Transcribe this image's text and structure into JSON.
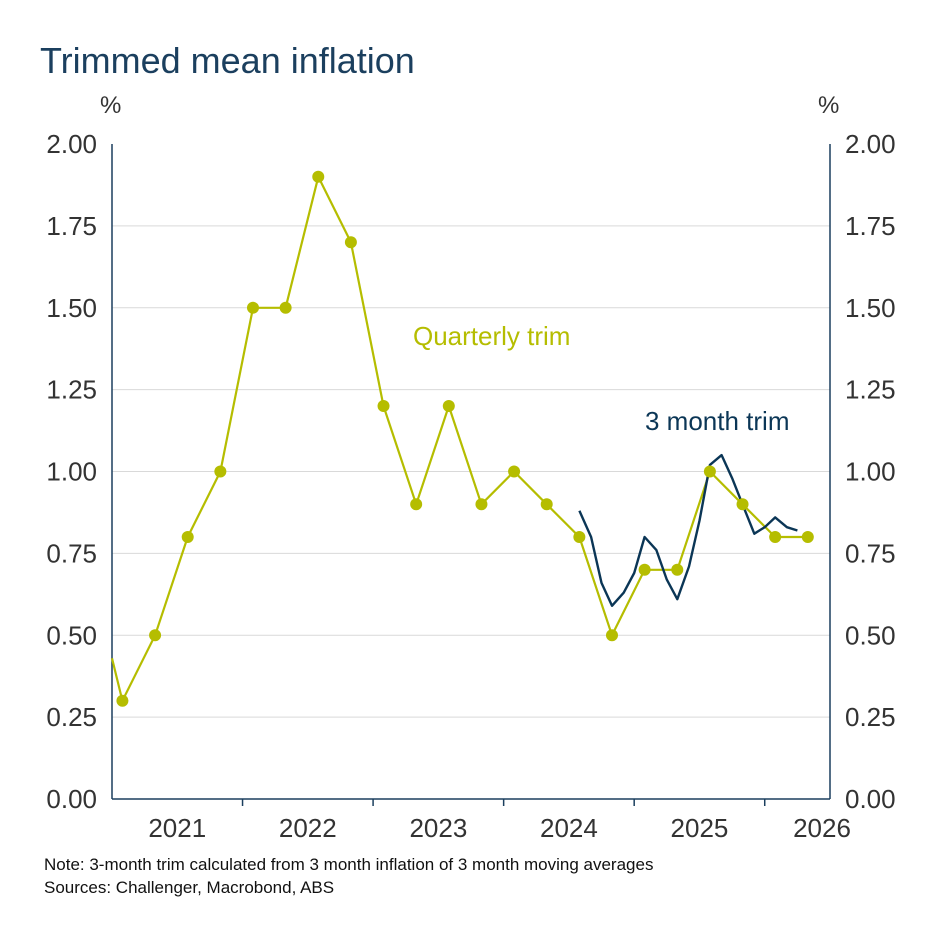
{
  "title": "Trimmed mean inflation",
  "unit_left": "%",
  "unit_right": "%",
  "note": "Note: 3-month trim calculated from 3 month inflation of 3 month moving averages",
  "sources": "Sources: Challenger, Macrobond, ABS",
  "colors": {
    "quarterly": "#b5bd00",
    "monthly": "#0b3656",
    "grid": "#d9d9d9",
    "axis": "#1b3f5e"
  },
  "chart_data": {
    "type": "line",
    "ylim": [
      0,
      2
    ],
    "yticks": [
      "0.00",
      "0.25",
      "0.50",
      "0.75",
      "1.00",
      "1.25",
      "1.50",
      "1.75",
      "2.00"
    ],
    "xlim": [
      2020.5,
      2026.0
    ],
    "xtick_labels": [
      "2021",
      "2022",
      "2023",
      "2024",
      "2025",
      "2026"
    ],
    "grid": true,
    "series": [
      {
        "name": "Quarterly trim",
        "x": [
          2020.5,
          2020.58,
          2020.83,
          2021.08,
          2021.33,
          2021.58,
          2021.83,
          2022.08,
          2022.33,
          2022.58,
          2022.83,
          2023.08,
          2023.33,
          2023.58,
          2023.83,
          2024.08,
          2024.33,
          2024.58,
          2024.83,
          2025.08,
          2025.33,
          2025.58,
          2025.83
        ],
        "values": [
          0.43,
          0.3,
          0.5,
          0.8,
          1.0,
          1.5,
          1.5,
          1.9,
          1.7,
          1.2,
          0.9,
          1.2,
          0.9,
          1.0,
          0.9,
          0.8,
          0.5,
          0.7,
          0.7,
          1.0,
          0.9,
          0.8,
          0.8
        ],
        "markers": [
          false,
          true,
          true,
          true,
          true,
          true,
          true,
          true,
          true,
          true,
          true,
          true,
          true,
          true,
          true,
          true,
          true,
          true,
          true,
          true,
          true,
          true,
          true
        ]
      },
      {
        "name": "3 month trim",
        "x": [
          2024.08,
          2024.17,
          2024.25,
          2024.33,
          2024.42,
          2024.5,
          2024.58,
          2024.67,
          2024.75,
          2024.83,
          2024.92,
          2025.0,
          2025.08,
          2025.17,
          2025.25,
          2025.33,
          2025.42,
          2025.5,
          2025.58,
          2025.67,
          2025.75
        ],
        "values": [
          0.88,
          0.8,
          0.66,
          0.59,
          0.63,
          0.69,
          0.8,
          0.76,
          0.67,
          0.61,
          0.71,
          0.85,
          1.02,
          1.05,
          0.98,
          0.9,
          0.81,
          0.83,
          0.86,
          0.83,
          0.82
        ]
      }
    ]
  }
}
